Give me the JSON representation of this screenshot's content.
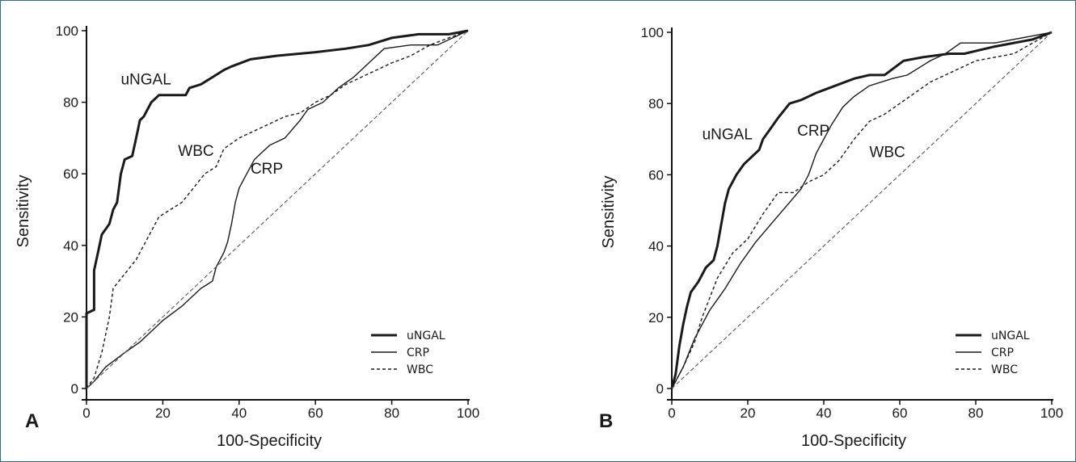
{
  "chart_data": [
    {
      "type": "line",
      "panel": "A",
      "xlabel": "100-Specificity",
      "ylabel": "Sensitivity",
      "xlim": [
        0,
        100
      ],
      "ylim": [
        0,
        100
      ],
      "xticks": [
        0,
        20,
        40,
        60,
        80,
        100
      ],
      "yticks": [
        0,
        20,
        40,
        60,
        80,
        100
      ],
      "legend": [
        "uNGAL",
        "CRP",
        "WBC"
      ],
      "legend_position": "bottom-right",
      "series": [
        {
          "name": "uNGAL",
          "style": "thick-solid",
          "label": "uNGAL",
          "label_at": [
            9,
            85
          ],
          "points": [
            [
              0,
              0
            ],
            [
              0,
              21
            ],
            [
              2,
              22
            ],
            [
              2,
              33
            ],
            [
              3,
              38
            ],
            [
              4,
              43
            ],
            [
              6,
              46
            ],
            [
              7,
              50
            ],
            [
              8,
              52
            ],
            [
              9,
              60
            ],
            [
              10,
              64
            ],
            [
              12,
              65
            ],
            [
              13,
              70
            ],
            [
              14,
              75
            ],
            [
              15,
              76
            ],
            [
              16,
              78
            ],
            [
              17,
              80
            ],
            [
              19,
              82
            ],
            [
              26,
              82
            ],
            [
              27,
              84
            ],
            [
              30,
              85
            ],
            [
              33,
              87
            ],
            [
              36,
              89
            ],
            [
              38,
              90
            ],
            [
              43,
              92
            ],
            [
              50,
              93
            ],
            [
              60,
              94
            ],
            [
              68,
              95
            ],
            [
              74,
              96
            ],
            [
              80,
              98
            ],
            [
              87,
              99
            ],
            [
              95,
              99
            ],
            [
              100,
              100
            ]
          ]
        },
        {
          "name": "CRP",
          "style": "thin-solid",
          "label": "CRP",
          "label_at": [
            43,
            60
          ],
          "points": [
            [
              0,
              0
            ],
            [
              2,
              2
            ],
            [
              5,
              6
            ],
            [
              10,
              10
            ],
            [
              14,
              13
            ],
            [
              18,
              17
            ],
            [
              20,
              19
            ],
            [
              25,
              23
            ],
            [
              30,
              28
            ],
            [
              33,
              30
            ],
            [
              34,
              34
            ],
            [
              36,
              38
            ],
            [
              37,
              41
            ],
            [
              38,
              46
            ],
            [
              39,
              52
            ],
            [
              40,
              56
            ],
            [
              42,
              60
            ],
            [
              44,
              64
            ],
            [
              46,
              66
            ],
            [
              48,
              68
            ],
            [
              52,
              70
            ],
            [
              56,
              75
            ],
            [
              58,
              78
            ],
            [
              62,
              80
            ],
            [
              66,
              84
            ],
            [
              70,
              87
            ],
            [
              74,
              91
            ],
            [
              78,
              95
            ],
            [
              85,
              96
            ],
            [
              92,
              96
            ],
            [
              100,
              100
            ]
          ]
        },
        {
          "name": "WBC",
          "style": "dashed",
          "label": "WBC",
          "label_at": [
            24,
            65
          ],
          "points": [
            [
              0,
              0
            ],
            [
              2,
              3
            ],
            [
              4,
              10
            ],
            [
              6,
              20
            ],
            [
              7,
              28
            ],
            [
              10,
              32
            ],
            [
              13,
              36
            ],
            [
              15,
              40
            ],
            [
              17,
              44
            ],
            [
              19,
              48
            ],
            [
              22,
              50
            ],
            [
              25,
              52
            ],
            [
              28,
              56
            ],
            [
              31,
              60
            ],
            [
              34,
              62
            ],
            [
              36,
              67
            ],
            [
              40,
              70
            ],
            [
              44,
              72
            ],
            [
              48,
              74
            ],
            [
              52,
              76
            ],
            [
              56,
              77
            ],
            [
              60,
              80
            ],
            [
              64,
              82
            ],
            [
              68,
              85
            ],
            [
              72,
              87
            ],
            [
              76,
              89
            ],
            [
              80,
              91
            ],
            [
              85,
              93
            ],
            [
              90,
              96
            ],
            [
              100,
              100
            ]
          ]
        },
        {
          "name": "reference",
          "style": "diagonal",
          "points": [
            [
              0,
              0
            ],
            [
              100,
              100
            ]
          ]
        }
      ]
    },
    {
      "type": "line",
      "panel": "B",
      "xlabel": "100-Specificity",
      "ylabel": "Sensitivity",
      "xlim": [
        0,
        100
      ],
      "ylim": [
        0,
        100
      ],
      "xticks": [
        0,
        20,
        40,
        60,
        80,
        100
      ],
      "yticks": [
        0,
        20,
        40,
        60,
        80,
        100
      ],
      "legend": [
        "uNGAL",
        "CRP",
        "WBC"
      ],
      "legend_position": "bottom-right",
      "series": [
        {
          "name": "uNGAL",
          "style": "thick-solid",
          "label": "uNGAL",
          "label_at": [
            8,
            70
          ],
          "points": [
            [
              0,
              0
            ],
            [
              1,
              4
            ],
            [
              2,
              12
            ],
            [
              3,
              18
            ],
            [
              4,
              23
            ],
            [
              5,
              27
            ],
            [
              7,
              30
            ],
            [
              9,
              34
            ],
            [
              11,
              36
            ],
            [
              12,
              40
            ],
            [
              13,
              46
            ],
            [
              14,
              52
            ],
            [
              15,
              56
            ],
            [
              17,
              60
            ],
            [
              19,
              63
            ],
            [
              21,
              65
            ],
            [
              23,
              67
            ],
            [
              24,
              70
            ],
            [
              26,
              73
            ],
            [
              28,
              76
            ],
            [
              31,
              80
            ],
            [
              34,
              81
            ],
            [
              38,
              83
            ],
            [
              43,
              85
            ],
            [
              48,
              87
            ],
            [
              52,
              88
            ],
            [
              56,
              88
            ],
            [
              61,
              92
            ],
            [
              66,
              93
            ],
            [
              73,
              94
            ],
            [
              77,
              94
            ],
            [
              85,
              96
            ],
            [
              95,
              98
            ],
            [
              100,
              100
            ]
          ]
        },
        {
          "name": "CRP",
          "style": "thin-solid",
          "label": "CRP",
          "label_at": [
            33,
            71
          ],
          "points": [
            [
              0,
              0
            ],
            [
              3,
              6
            ],
            [
              6,
              14
            ],
            [
              8,
              18
            ],
            [
              10,
              22
            ],
            [
              14,
              28
            ],
            [
              18,
              35
            ],
            [
              22,
              41
            ],
            [
              26,
              46
            ],
            [
              30,
              51
            ],
            [
              34,
              56
            ],
            [
              36,
              60
            ],
            [
              38,
              66
            ],
            [
              40,
              70
            ],
            [
              42,
              74
            ],
            [
              45,
              79
            ],
            [
              48,
              82
            ],
            [
              52,
              85
            ],
            [
              58,
              87
            ],
            [
              62,
              88
            ],
            [
              68,
              92
            ],
            [
              72,
              94
            ],
            [
              76,
              97
            ],
            [
              85,
              97
            ],
            [
              95,
              99
            ],
            [
              100,
              100
            ]
          ]
        },
        {
          "name": "WBC",
          "style": "dashed",
          "label": "WBC",
          "label_at": [
            52,
            65
          ],
          "points": [
            [
              0,
              0
            ],
            [
              3,
              6
            ],
            [
              6,
              13
            ],
            [
              8,
              20
            ],
            [
              12,
              31
            ],
            [
              16,
              38
            ],
            [
              20,
              42
            ],
            [
              24,
              49
            ],
            [
              28,
              55
            ],
            [
              32,
              55
            ],
            [
              36,
              58
            ],
            [
              40,
              60
            ],
            [
              44,
              64
            ],
            [
              48,
              70
            ],
            [
              52,
              75
            ],
            [
              56,
              77
            ],
            [
              60,
              80
            ],
            [
              64,
              83
            ],
            [
              68,
              86
            ],
            [
              72,
              88
            ],
            [
              76,
              90
            ],
            [
              80,
              92
            ],
            [
              85,
              93
            ],
            [
              90,
              94
            ],
            [
              95,
              97
            ],
            [
              100,
              100
            ]
          ]
        },
        {
          "name": "reference",
          "style": "diagonal",
          "points": [
            [
              0,
              0
            ],
            [
              100,
              100
            ]
          ]
        }
      ]
    }
  ]
}
